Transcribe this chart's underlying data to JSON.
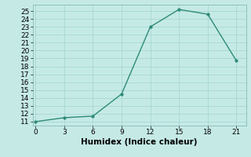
{
  "x": [
    0,
    3,
    6,
    9,
    12,
    15,
    18,
    21
  ],
  "y": [
    11.0,
    11.5,
    11.7,
    14.5,
    23.0,
    25.2,
    24.6,
    18.7
  ],
  "line_color": "#2e8b77",
  "marker_color": "#2e8b77",
  "bg_color": "#c5eae6",
  "grid_color": "#a8d8d2",
  "xlabel": "Humidex (Indice chaleur)",
  "xlim": [
    -0.3,
    22.0
  ],
  "ylim": [
    10.5,
    25.8
  ],
  "xticks": [
    0,
    3,
    6,
    9,
    12,
    15,
    18,
    21
  ],
  "yticks": [
    11,
    12,
    13,
    14,
    15,
    16,
    17,
    18,
    19,
    20,
    21,
    22,
    23,
    24,
    25
  ],
  "label_fontsize": 7.5,
  "tick_fontsize": 6.5
}
